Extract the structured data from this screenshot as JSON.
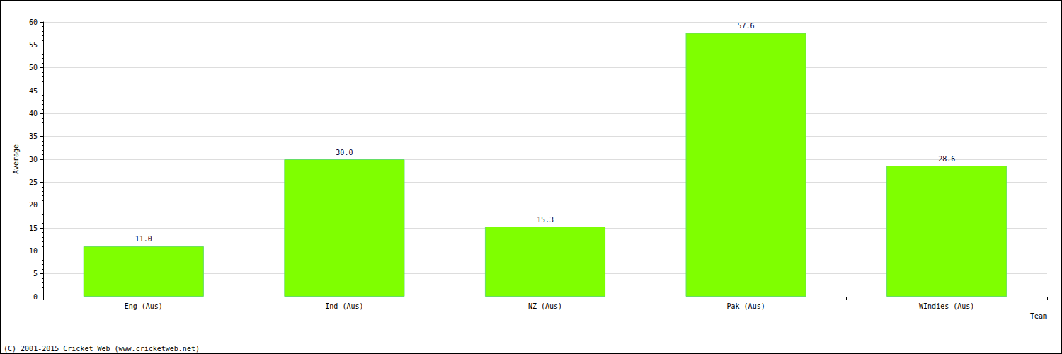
{
  "chart_data": {
    "type": "bar",
    "categories": [
      "Eng (Aus)",
      "Ind (Aus)",
      "NZ (Aus)",
      "Pak (Aus)",
      "WIndies (Aus)"
    ],
    "values": [
      11.0,
      30.0,
      15.3,
      57.6,
      28.6
    ],
    "value_labels": [
      "11.0",
      "30.0",
      "15.3",
      "57.6",
      "28.6"
    ],
    "data_labels": true,
    "color": "#7fff00",
    "x_label": "Team",
    "y_label": "Average",
    "ylim": [
      0,
      60
    ],
    "yticks": [
      0,
      5,
      10,
      15,
      20,
      25,
      30,
      35,
      40,
      45,
      50,
      55,
      60
    ],
    "grid": true,
    "annotations": [
      "(C) 2001-2015 Cricket Web (www.cricketweb.net)"
    ]
  }
}
